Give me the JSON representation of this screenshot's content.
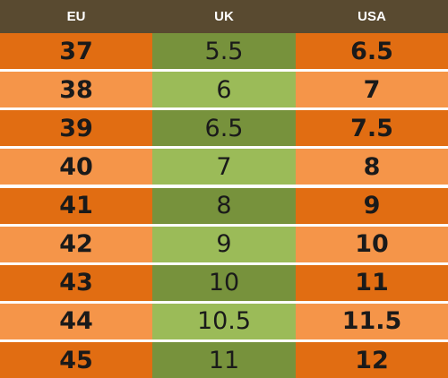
{
  "table": {
    "headers": [
      "EU",
      "UK",
      "USA"
    ],
    "rows": [
      {
        "eu": "37",
        "uk": "5.5",
        "usa": "6.5"
      },
      {
        "eu": "38",
        "uk": "6",
        "usa": "7"
      },
      {
        "eu": "39",
        "uk": "6.5",
        "usa": "7.5"
      },
      {
        "eu": "40",
        "uk": "7",
        "usa": "8"
      },
      {
        "eu": "41",
        "uk": "8",
        "usa": "9"
      },
      {
        "eu": "42",
        "uk": "9",
        "usa": "10"
      },
      {
        "eu": "43",
        "uk": "10",
        "usa": "11"
      },
      {
        "eu": "44",
        "uk": "10.5",
        "usa": "11.5"
      },
      {
        "eu": "45",
        "uk": "11",
        "usa": "12"
      }
    ]
  },
  "colors": {
    "header_bg": "#594a30",
    "orange_dark": "#e16d12",
    "orange_light": "#f59549",
    "green_dark": "#77923c",
    "green_light": "#9bbb58"
  }
}
